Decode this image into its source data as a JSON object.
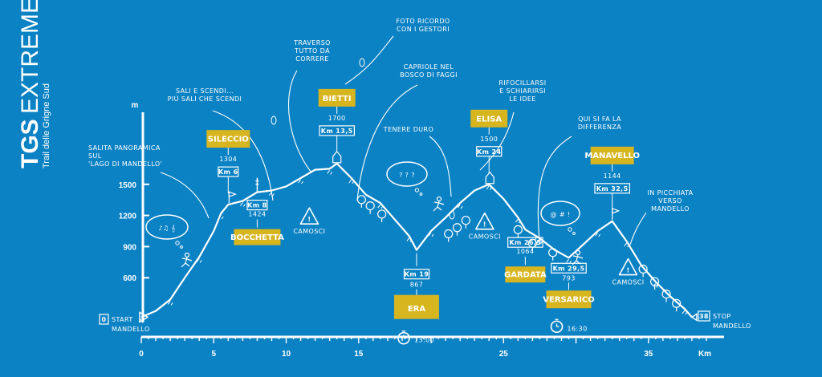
{
  "title": {
    "brand": "TGS",
    "name": "EXTREME",
    "subtitle": "Trail delle Grigne Sud"
  },
  "colors": {
    "background": "#0b82c4",
    "label_box": "#d7b51f",
    "ink": "#ffffff"
  },
  "chart_data": {
    "type": "area",
    "x_unit": "Km",
    "y_unit": "m",
    "xlim": [
      0,
      39
    ],
    "ylim": [
      200,
      1900
    ],
    "x_ticks": [
      0,
      5,
      10,
      15,
      20,
      25,
      30,
      35
    ],
    "x_tick_labels": [
      "0",
      "5",
      "10",
      "15",
      "",
      "25",
      "",
      "35"
    ],
    "y_ticks": [
      600,
      900,
      1200,
      1500
    ],
    "grid": false,
    "profile": [
      {
        "x": 0,
        "y": 220
      },
      {
        "x": 1,
        "y": 280
      },
      {
        "x": 2,
        "y": 390
      },
      {
        "x": 3,
        "y": 600
      },
      {
        "x": 4,
        "y": 800
      },
      {
        "x": 5,
        "y": 1050
      },
      {
        "x": 5.5,
        "y": 1220
      },
      {
        "x": 6,
        "y": 1304
      },
      {
        "x": 7,
        "y": 1340
      },
      {
        "x": 8,
        "y": 1424
      },
      {
        "x": 9,
        "y": 1440
      },
      {
        "x": 10,
        "y": 1480
      },
      {
        "x": 11,
        "y": 1560
      },
      {
        "x": 12,
        "y": 1640
      },
      {
        "x": 13,
        "y": 1650
      },
      {
        "x": 13.5,
        "y": 1700
      },
      {
        "x": 14.5,
        "y": 1560
      },
      {
        "x": 15.5,
        "y": 1400
      },
      {
        "x": 16.5,
        "y": 1320
      },
      {
        "x": 17.5,
        "y": 1160
      },
      {
        "x": 18.5,
        "y": 1000
      },
      {
        "x": 19,
        "y": 867
      },
      {
        "x": 20,
        "y": 1050
      },
      {
        "x": 21,
        "y": 1180
      },
      {
        "x": 22,
        "y": 1320
      },
      {
        "x": 23,
        "y": 1440
      },
      {
        "x": 24,
        "y": 1500
      },
      {
        "x": 25,
        "y": 1360
      },
      {
        "x": 26,
        "y": 1180
      },
      {
        "x": 26.5,
        "y": 1064
      },
      {
        "x": 27.5,
        "y": 980
      },
      {
        "x": 28.5,
        "y": 870
      },
      {
        "x": 29.5,
        "y": 793
      },
      {
        "x": 30.5,
        "y": 920
      },
      {
        "x": 31.5,
        "y": 1050
      },
      {
        "x": 32.5,
        "y": 1144
      },
      {
        "x": 33.5,
        "y": 950
      },
      {
        "x": 34.5,
        "y": 720
      },
      {
        "x": 35.5,
        "y": 560
      },
      {
        "x": 36.5,
        "y": 420
      },
      {
        "x": 37.5,
        "y": 300
      },
      {
        "x": 38,
        "y": 220
      }
    ],
    "points": [
      {
        "km": 0,
        "km_label": "0",
        "name": "START\nMANDELLO",
        "kind": "start"
      },
      {
        "km": 6,
        "km_label": "Km 6",
        "alt": 1304,
        "alt_label": "1304",
        "name": "SILECCIO",
        "kind": "box_up"
      },
      {
        "km": 8,
        "km_label": "Km 8",
        "alt": 1424,
        "alt_label": "1424",
        "name": "BOCCHETTA",
        "kind": "box_down"
      },
      {
        "km": 13.5,
        "km_label": "Km 13,5",
        "alt": 1700,
        "alt_label": "1700",
        "name": "BIETTI",
        "kind": "box_up"
      },
      {
        "km": 19,
        "km_label": "Km 19",
        "alt": 867,
        "alt_label": "867",
        "name": "ERA",
        "kind": "box_big",
        "time": "13:00"
      },
      {
        "km": 24,
        "km_label": "Km 24",
        "alt": 1500,
        "alt_label": "1500",
        "name": "ELISA",
        "kind": "box_up"
      },
      {
        "km": 26.5,
        "km_label": "Km 26,5",
        "alt": 1064,
        "alt_label": "1064",
        "name": "GARDATA",
        "kind": "box_down"
      },
      {
        "km": 29.5,
        "km_label": "Km 29,5",
        "alt": 793,
        "alt_label": "793",
        "name": "VERSARICO",
        "kind": "box_down2",
        "time": "16:30"
      },
      {
        "km": 32.5,
        "km_label": "Km 32,5",
        "alt": 1144,
        "alt_label": "1144",
        "name": "MANAVELLO",
        "kind": "box_up"
      },
      {
        "km": 38,
        "km_label": "38",
        "name": "STOP\nMANDELLO",
        "kind": "stop"
      }
    ],
    "annotations": [
      {
        "text": "SALITA PANORAMICA\nSUL\n'LAGO DI MANDELLO'"
      },
      {
        "text": "SALI E SCENDI...\nPIÙ SALI CHE SCENDI"
      },
      {
        "text": "TRAVERSO\nTUTTO DA\nCORRERE"
      },
      {
        "text": "FOTO RICORDO\nCON I GESTORI"
      },
      {
        "text": "CAPRIOLE NEL\nBOSCO DI FAGGI"
      },
      {
        "text": "TENERE DURO"
      },
      {
        "text": "RIFOCILLARSI\nE SCHIARIRSI\nLE IDEE"
      },
      {
        "text": "QUI SI FA LA\nDIFFERENZA"
      },
      {
        "text": "IN PICCHIATA\nVERSO\nMANDELLO"
      }
    ],
    "camosci_labels": [
      "CAMOSCI",
      "CAMOSCI",
      "CAMOSCI"
    ],
    "thought_bubbles": [
      "♪♫ 𝄞",
      "? ? ?",
      "@ # !"
    ]
  }
}
